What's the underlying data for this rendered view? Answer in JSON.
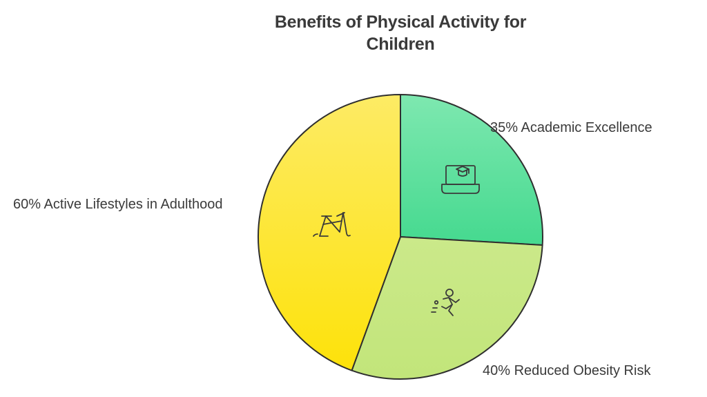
{
  "chart_data": {
    "type": "pie",
    "title_lines": [
      "Benefits of Physical Activity for",
      "Children"
    ],
    "slices": [
      {
        "label": "35% Academic Excellence",
        "value": 35,
        "color_top": "#7ee8b0",
        "color_bottom": "#45d98f",
        "icon": "laptop-graduation-cap-icon"
      },
      {
        "label": "40% Reduced Obesity Risk",
        "value": 40,
        "color_top": "#cbe98a",
        "color_bottom": "#c2e57a",
        "icon": "running-person-icon"
      },
      {
        "label": "60% Active Lifestyles in Adulthood",
        "value": 60,
        "color_top": "#fdeb65",
        "color_bottom": "#fde20a",
        "icon": "bicycle-icon"
      }
    ],
    "outline_color": "#2f2f2f"
  }
}
